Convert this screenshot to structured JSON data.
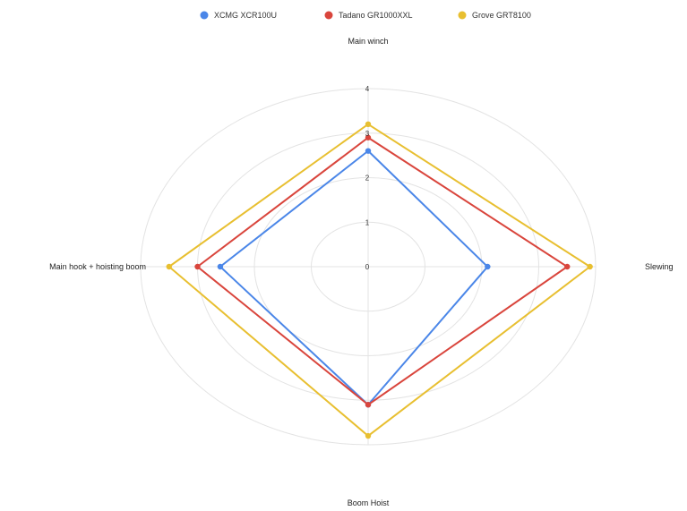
{
  "chart_data": {
    "type": "radar",
    "axes": [
      "Main winch",
      "Slewing",
      "Boom Hoist",
      "Main hook + hoisting boom"
    ],
    "rlim": [
      0,
      4
    ],
    "ticks": [
      0,
      1,
      2,
      3,
      4
    ],
    "grid": true,
    "legend_position": "top-center",
    "series": [
      {
        "name": "XCMG XCR100U",
        "color": "#4a86e8",
        "values": [
          2.6,
          2.1,
          3.1,
          2.6
        ]
      },
      {
        "name": "Tadano GR1000XXL",
        "color": "#d9453c",
        "values": [
          2.9,
          3.5,
          3.1,
          3.0
        ]
      },
      {
        "name": "Grove GRT8100",
        "color": "#e8bf30",
        "values": [
          3.2,
          3.9,
          3.8,
          3.5
        ]
      }
    ]
  }
}
